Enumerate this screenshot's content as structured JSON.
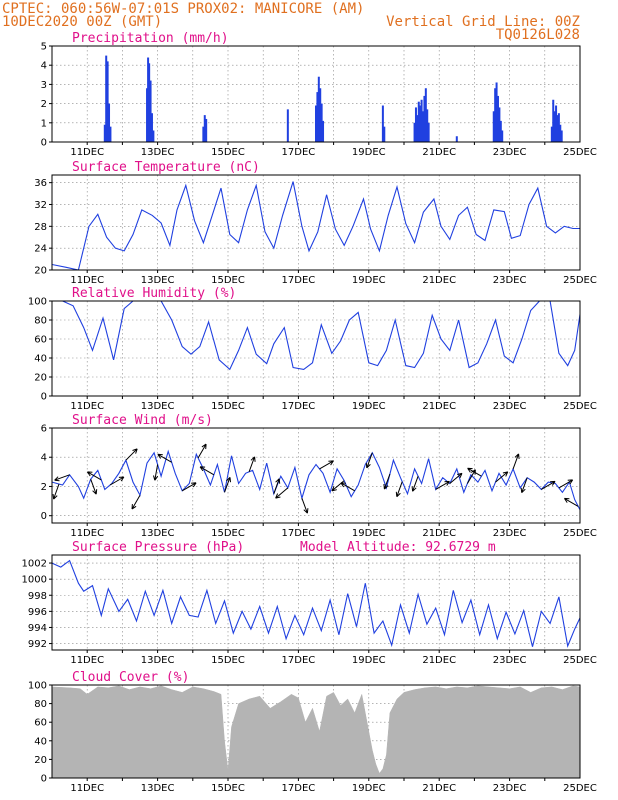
{
  "header": {
    "line1": "CPTEC:   060:56W-07:01S   PROX02: MANICORE (AM)",
    "line2_left": "10DEC2020 00Z (GMT)",
    "line2_right": "Vertical Grid Line: 00Z",
    "line3_right": "TQ0126L028"
  },
  "colors": {
    "series": "#2040e0",
    "title": "#e0108a",
    "header": "#e07020",
    "cloud": "#b4b4b4"
  },
  "date_ticks": [
    "11DEC",
    "13DEC",
    "15DEC",
    "17DEC",
    "19DEC",
    "21DEC",
    "23DEC",
    "25DEC"
  ],
  "chart_data": [
    {
      "id": "precip",
      "type": "bar",
      "title": "Precipitation (mm/h)",
      "x_unit": "days since 10DEC2020 00Z",
      "xlim": [
        0,
        15
      ],
      "ylim": [
        0,
        5
      ],
      "yticks": [
        0,
        1,
        2,
        3,
        4,
        5
      ],
      "x": [
        1.5,
        1.54,
        1.58,
        1.62,
        1.66,
        2.7,
        2.73,
        2.76,
        2.8,
        2.84,
        2.88,
        4.3,
        4.34,
        4.38,
        6.7,
        7.5,
        7.54,
        7.58,
        7.62,
        7.66,
        7.7,
        9.4,
        9.44,
        10.3,
        10.34,
        10.38,
        10.42,
        10.46,
        10.5,
        10.54,
        10.58,
        10.62,
        10.66,
        10.7,
        11.5,
        12.55,
        12.59,
        12.63,
        12.67,
        12.71,
        12.75,
        12.79,
        14.2,
        14.24,
        14.28,
        14.32,
        14.36,
        14.4,
        14.44,
        14.48
      ],
      "values": [
        0.9,
        4.5,
        4.2,
        2.0,
        0.8,
        2.8,
        4.4,
        4.1,
        3.2,
        1.5,
        0.6,
        0.8,
        1.4,
        1.2,
        1.7,
        1.9,
        2.6,
        3.4,
        2.8,
        2.0,
        1.1,
        1.9,
        0.8,
        1.0,
        1.8,
        1.4,
        2.1,
        1.9,
        2.2,
        1.6,
        2.4,
        2.8,
        1.7,
        1.0,
        0.3,
        1.6,
        2.8,
        3.1,
        2.4,
        1.8,
        1.1,
        0.6,
        0.8,
        2.2,
        1.6,
        1.9,
        1.4,
        1.5,
        0.9,
        0.6
      ]
    },
    {
      "id": "temp",
      "type": "line",
      "title": "Surface Temperature (nC)",
      "x_unit": "days since 10DEC2020 00Z",
      "xlim": [
        0,
        15
      ],
      "ylim": [
        20,
        37.4
      ],
      "yticks": [
        20,
        24,
        28,
        32,
        36
      ],
      "x": [
        0,
        0.4,
        0.75,
        1.05,
        1.3,
        1.55,
        1.8,
        2.05,
        2.3,
        2.55,
        2.85,
        3.1,
        3.35,
        3.55,
        3.8,
        4.05,
        4.3,
        4.55,
        4.8,
        5.05,
        5.3,
        5.55,
        5.8,
        6.05,
        6.3,
        6.55,
        6.85,
        7.1,
        7.3,
        7.55,
        7.8,
        8.05,
        8.3,
        8.55,
        8.85,
        9.05,
        9.3,
        9.55,
        9.8,
        10.05,
        10.3,
        10.55,
        10.85,
        11.05,
        11.3,
        11.55,
        11.8,
        12.05,
        12.3,
        12.55,
        12.85,
        13.05,
        13.3,
        13.55,
        13.8,
        14.05,
        14.3,
        14.55,
        14.8,
        15.0
      ],
      "values": [
        21,
        20.5,
        20,
        28,
        30.2,
        26,
        24,
        23.5,
        26.5,
        31,
        30,
        28.6,
        24.5,
        31,
        35.5,
        29,
        25,
        30,
        35,
        26.5,
        25,
        31,
        35.5,
        27,
        24,
        30,
        36.2,
        28,
        23.5,
        27,
        33.8,
        27.5,
        24.5,
        28,
        33,
        27.5,
        23.5,
        30,
        35.2,
        28.5,
        25,
        30.6,
        33,
        28,
        25.6,
        30,
        31.5,
        26.5,
        25.4,
        31,
        30.7,
        25.8,
        26.3,
        32,
        35,
        28,
        26.8,
        28,
        27.6,
        27.6
      ]
    },
    {
      "id": "rh",
      "type": "line",
      "title": "Relative Humidity (%)",
      "x_unit": "days since 10DEC2020 00Z",
      "xlim": [
        0,
        15
      ],
      "ylim": [
        0,
        100
      ],
      "yticks": [
        0,
        20,
        40,
        60,
        80,
        100
      ],
      "x": [
        0,
        0.3,
        0.6,
        0.9,
        1.15,
        1.45,
        1.75,
        2.05,
        2.3,
        2.55,
        2.85,
        3.1,
        3.4,
        3.7,
        3.95,
        4.2,
        4.45,
        4.75,
        5.05,
        5.3,
        5.55,
        5.8,
        6.1,
        6.3,
        6.6,
        6.85,
        7.15,
        7.4,
        7.65,
        7.95,
        8.2,
        8.45,
        8.7,
        9.0,
        9.25,
        9.5,
        9.75,
        10.05,
        10.3,
        10.55,
        10.8,
        11.05,
        11.3,
        11.55,
        11.85,
        12.1,
        12.35,
        12.6,
        12.85,
        13.1,
        13.35,
        13.6,
        13.85,
        14.15,
        14.4,
        14.65,
        14.85,
        15.0
      ],
      "values": [
        100,
        100,
        95,
        72,
        48,
        82,
        38,
        92,
        100,
        100,
        100,
        100,
        80,
        52,
        44,
        52,
        78,
        38,
        28,
        48,
        72,
        44,
        34,
        55,
        72,
        30,
        28,
        35,
        75,
        45,
        58,
        80,
        88,
        35,
        32,
        48,
        80,
        32,
        30,
        45,
        85,
        60,
        48,
        80,
        30,
        35,
        55,
        80,
        42,
        35,
        60,
        90,
        100,
        100,
        45,
        32,
        48,
        86
      ]
    },
    {
      "id": "wind",
      "type": "line",
      "title": "Surface Wind (m/s)",
      "x_unit": "days since 10DEC2020 00Z",
      "xlim": [
        0,
        15
      ],
      "ylim": [
        -0.5,
        6
      ],
      "yticks": [
        0,
        2,
        4,
        6
      ],
      "x": [
        0,
        0.3,
        0.5,
        0.75,
        0.9,
        1.1,
        1.3,
        1.5,
        1.7,
        1.9,
        2.1,
        2.3,
        2.5,
        2.7,
        2.9,
        3.1,
        3.3,
        3.5,
        3.7,
        3.9,
        4.1,
        4.3,
        4.5,
        4.7,
        4.9,
        5.1,
        5.3,
        5.5,
        5.7,
        5.9,
        6.1,
        6.3,
        6.5,
        6.7,
        6.9,
        7.1,
        7.3,
        7.5,
        7.7,
        7.9,
        8.1,
        8.3,
        8.5,
        8.7,
        8.9,
        9.1,
        9.3,
        9.5,
        9.7,
        9.9,
        10.1,
        10.3,
        10.5,
        10.7,
        10.9,
        11.1,
        11.3,
        11.5,
        11.7,
        11.9,
        12.1,
        12.3,
        12.5,
        12.7,
        12.9,
        13.1,
        13.3,
        13.5,
        13.7,
        13.9,
        14.1,
        14.3,
        14.5,
        14.7,
        14.85,
        15.0
      ],
      "values": [
        2.3,
        2.1,
        2.8,
        2.0,
        1.2,
        2.5,
        3.1,
        1.8,
        2.2,
        2.9,
        3.8,
        2.3,
        1.4,
        3.6,
        4.3,
        2.7,
        4.4,
        2.9,
        1.7,
        2.2,
        4.2,
        3.2,
        2.1,
        3.5,
        1.6,
        4.1,
        2.2,
        2.9,
        3.1,
        1.8,
        3.6,
        1.5,
        2.7,
        1.9,
        3.3,
        1.2,
        2.8,
        3.5,
        2.9,
        1.6,
        3.2,
        2.4,
        1.3,
        2.1,
        3.5,
        4.3,
        3.3,
        1.9,
        3.8,
        2.6,
        1.5,
        3.2,
        2.2,
        3.9,
        1.8,
        2.6,
        2.2,
        3.2,
        1.6,
        2.8,
        2.3,
        3.1,
        1.7,
        2.9,
        2.1,
        3.2,
        1.9,
        2.6,
        2.3,
        1.8,
        2.3,
        2.2,
        1.6,
        2.3,
        1.1,
        0.4
      ],
      "vectors_x": [
        0.2,
        0.5,
        1.1,
        1.4,
        1.65,
        2.1,
        2.5,
        3.0,
        3.4,
        3.7,
        4.15,
        4.6,
        4.9,
        5.6,
        6.3,
        6.7,
        7.1,
        7.6,
        8.3,
        8.6,
        9.1,
        9.6,
        9.95,
        10.4,
        10.9,
        11.3,
        11.8,
        12.2,
        12.6,
        13.1,
        13.5,
        13.9,
        14.4,
        14.95
      ],
      "vectors_dir": [
        200,
        250,
        160,
        300,
        60,
        45,
        210,
        190,
        300,
        60,
        30,
        300,
        20,
        20,
        20,
        230,
        160,
        60,
        230,
        300,
        200,
        200,
        200,
        200,
        60,
        50,
        30,
        300,
        50,
        20,
        200,
        60,
        60,
        300
      ]
    },
    {
      "id": "pressure",
      "type": "line",
      "title": "Surface Pressure (hPa)",
      "annotation": "Model Altitude: 92.6729 m",
      "x_unit": "days since 10DEC2020 00Z",
      "xlim": [
        0,
        15
      ],
      "ylim": [
        991.2,
        1003
      ],
      "yticks": [
        992,
        994,
        996,
        998,
        1000,
        1002
      ],
      "x": [
        0,
        0.25,
        0.5,
        0.75,
        0.9,
        1.15,
        1.4,
        1.6,
        1.9,
        2.15,
        2.4,
        2.65,
        2.9,
        3.15,
        3.4,
        3.65,
        3.9,
        4.15,
        4.4,
        4.65,
        4.9,
        5.15,
        5.4,
        5.65,
        5.9,
        6.15,
        6.4,
        6.65,
        6.9,
        7.15,
        7.4,
        7.65,
        7.9,
        8.15,
        8.4,
        8.65,
        8.9,
        9.15,
        9.4,
        9.65,
        9.9,
        10.15,
        10.4,
        10.65,
        10.9,
        11.15,
        11.4,
        11.65,
        11.9,
        12.15,
        12.4,
        12.65,
        12.9,
        13.15,
        13.4,
        13.65,
        13.9,
        14.15,
        14.4,
        14.65,
        14.85,
        15.0
      ],
      "values": [
        1002,
        1001.5,
        1002.3,
        999.5,
        998.5,
        999.2,
        995.5,
        998.8,
        996,
        997.5,
        994.8,
        998.5,
        995.5,
        998.6,
        994.5,
        997.8,
        995.5,
        995.3,
        998.6,
        994.5,
        997.3,
        993.3,
        996,
        993.8,
        996.6,
        993.3,
        996.6,
        992.6,
        995.5,
        993.1,
        996.4,
        993.6,
        997.4,
        993.1,
        998.2,
        994.1,
        999.5,
        993.3,
        994.8,
        991.8,
        996.8,
        993.3,
        998.1,
        994.4,
        996.4,
        993.1,
        998.6,
        994.6,
        997.4,
        993.1,
        996.8,
        992.6,
        995.9,
        993.2,
        996.1,
        991.6,
        996,
        994.5,
        997.8,
        991.7,
        993.8,
        995.2
      ]
    },
    {
      "id": "cloud",
      "type": "area",
      "title": "Cloud Cover (%)",
      "x_unit": "days since 10DEC2020 00Z",
      "xlim": [
        0,
        15
      ],
      "ylim": [
        0,
        100
      ],
      "yticks": [
        0,
        20,
        40,
        60,
        80,
        100
      ],
      "x": [
        0,
        0.5,
        0.8,
        1.0,
        1.3,
        1.6,
        1.9,
        2.2,
        2.5,
        2.8,
        3.1,
        3.4,
        3.7,
        4.0,
        4.3,
        4.6,
        4.8,
        4.9,
        5.0,
        5.1,
        5.3,
        5.6,
        5.9,
        6.2,
        6.5,
        6.8,
        7.0,
        7.2,
        7.4,
        7.6,
        7.8,
        8.0,
        8.2,
        8.4,
        8.6,
        8.8,
        9.0,
        9.1,
        9.2,
        9.3,
        9.4,
        9.5,
        9.6,
        9.8,
        10.0,
        10.3,
        10.6,
        10.9,
        11.2,
        11.5,
        11.8,
        12.1,
        12.4,
        12.7,
        13.0,
        13.3,
        13.6,
        13.9,
        14.2,
        14.5,
        14.8,
        15.0
      ],
      "values": [
        98,
        97,
        96,
        90,
        98,
        97,
        99,
        95,
        98,
        96,
        99,
        95,
        92,
        98,
        96,
        93,
        90,
        40,
        8,
        55,
        80,
        85,
        88,
        75,
        82,
        90,
        86,
        60,
        75,
        50,
        88,
        92,
        78,
        85,
        70,
        90,
        50,
        30,
        15,
        5,
        10,
        25,
        70,
        85,
        92,
        95,
        97,
        98,
        96,
        98,
        97,
        99,
        98,
        97,
        96,
        98,
        92,
        97,
        98,
        95,
        99,
        98
      ]
    }
  ]
}
